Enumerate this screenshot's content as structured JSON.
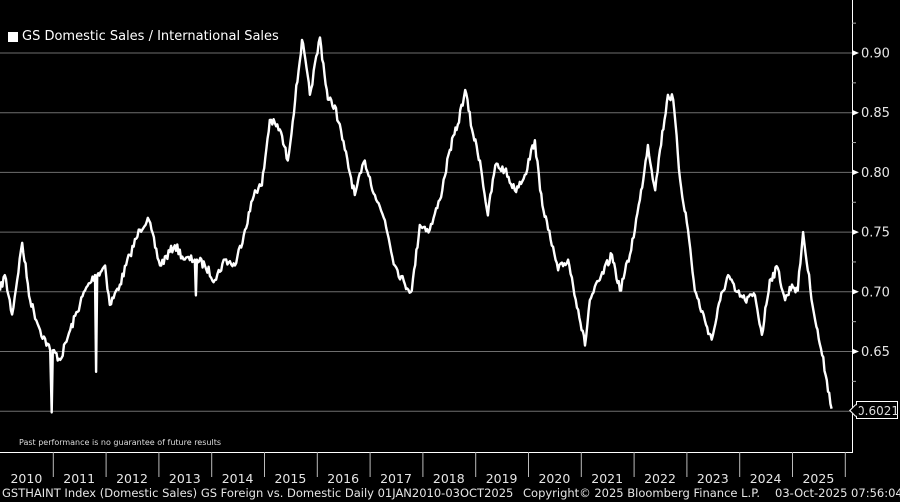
{
  "chart_data": {
    "type": "line",
    "title": "GS Domestic Sales / International Sales",
    "legend": [
      {
        "label": "GS Domestic Sales / International Sales",
        "color": "#ffffff"
      }
    ],
    "legend_placement": "top-left",
    "xlabel": "",
    "ylabel": "",
    "xlim": [
      2010.0,
      2025.85
    ],
    "ylim": [
      0.575,
      0.95
    ],
    "y_ticks": [
      "0.90",
      "0.85",
      "0.80",
      "0.75",
      "0.70",
      "0.65"
    ],
    "y_tick_values": [
      0.9,
      0.85,
      0.8,
      0.75,
      0.7,
      0.65,
      0.6
    ],
    "x_ticks": [
      "2010",
      "2011",
      "2012",
      "2013",
      "2014",
      "2015",
      "2016",
      "2017",
      "2018",
      "2019",
      "2020",
      "2021",
      "2022",
      "2023",
      "2024",
      "2025"
    ],
    "grid": true,
    "last_value_label": "0.6021",
    "series": [
      {
        "name": "GS Domestic Sales / International Sales",
        "x": [
          2010.0,
          2010.09,
          2010.23,
          2010.42,
          2010.57,
          2010.76,
          2010.95,
          2010.98,
          2011.0,
          2011.14,
          2011.33,
          2011.61,
          2011.8,
          2011.82,
          2011.84,
          2011.99,
          2012.08,
          2012.27,
          2012.46,
          2012.65,
          2012.8,
          2013.03,
          2013.31,
          2013.5,
          2013.69,
          2013.71,
          2013.73,
          2013.88,
          2014.07,
          2014.26,
          2014.45,
          2014.64,
          2014.83,
          2014.96,
          2015.11,
          2015.3,
          2015.45,
          2015.59,
          2015.72,
          2015.87,
          2016.06,
          2016.21,
          2016.34,
          2016.53,
          2016.72,
          2016.91,
          2017.1,
          2017.29,
          2017.48,
          2017.67,
          2017.8,
          2017.95,
          2018.14,
          2018.33,
          2018.52,
          2018.67,
          2018.81,
          2018.94,
          2019.09,
          2019.24,
          2019.38,
          2019.56,
          2019.75,
          2019.94,
          2020.13,
          2020.23,
          2020.38,
          2020.57,
          2020.76,
          2020.95,
          2021.08,
          2021.17,
          2021.36,
          2021.59,
          2021.74,
          2021.93,
          2022.12,
          2022.27,
          2022.41,
          2022.5,
          2022.65,
          2022.75,
          2022.88,
          2023.03,
          2023.16,
          2023.35,
          2023.48,
          2023.64,
          2023.79,
          2023.92,
          2024.11,
          2024.3,
          2024.43,
          2024.58,
          2024.73,
          2024.87,
          2025.0,
          2025.11,
          2025.21,
          2025.3,
          2025.44,
          2025.57,
          2025.66,
          2025.75
        ],
        "y": [
          0.701,
          0.714,
          0.681,
          0.741,
          0.693,
          0.668,
          0.651,
          0.599,
          0.651,
          0.643,
          0.668,
          0.701,
          0.714,
          0.633,
          0.714,
          0.722,
          0.689,
          0.706,
          0.731,
          0.752,
          0.762,
          0.722,
          0.739,
          0.727,
          0.727,
          0.697,
          0.727,
          0.722,
          0.71,
          0.727,
          0.722,
          0.752,
          0.785,
          0.789,
          0.844,
          0.836,
          0.81,
          0.861,
          0.911,
          0.865,
          0.913,
          0.861,
          0.856,
          0.819,
          0.781,
          0.81,
          0.781,
          0.76,
          0.722,
          0.706,
          0.701,
          0.756,
          0.752,
          0.777,
          0.819,
          0.84,
          0.869,
          0.836,
          0.81,
          0.764,
          0.806,
          0.802,
          0.785,
          0.798,
          0.827,
          0.785,
          0.752,
          0.718,
          0.727,
          0.685,
          0.655,
          0.693,
          0.71,
          0.731,
          0.701,
          0.731,
          0.777,
          0.823,
          0.785,
          0.819,
          0.865,
          0.861,
          0.794,
          0.752,
          0.701,
          0.676,
          0.66,
          0.693,
          0.714,
          0.701,
          0.693,
          0.697,
          0.664,
          0.71,
          0.72,
          0.693,
          0.706,
          0.701,
          0.75,
          0.718,
          0.676,
          0.647,
          0.626,
          0.6021
        ]
      }
    ]
  },
  "disclaimer": "Past performance is no guarantee of future results",
  "footer": {
    "description": "GSTHAINT Index (Domestic Sales) GS Foreign vs. Domestic Daily 01JAN2010-03OCT2025",
    "copyright": "Copyright© 2025 Bloomberg Finance L.P.",
    "timestamp": "03-Oct-2025 07:56:04"
  }
}
